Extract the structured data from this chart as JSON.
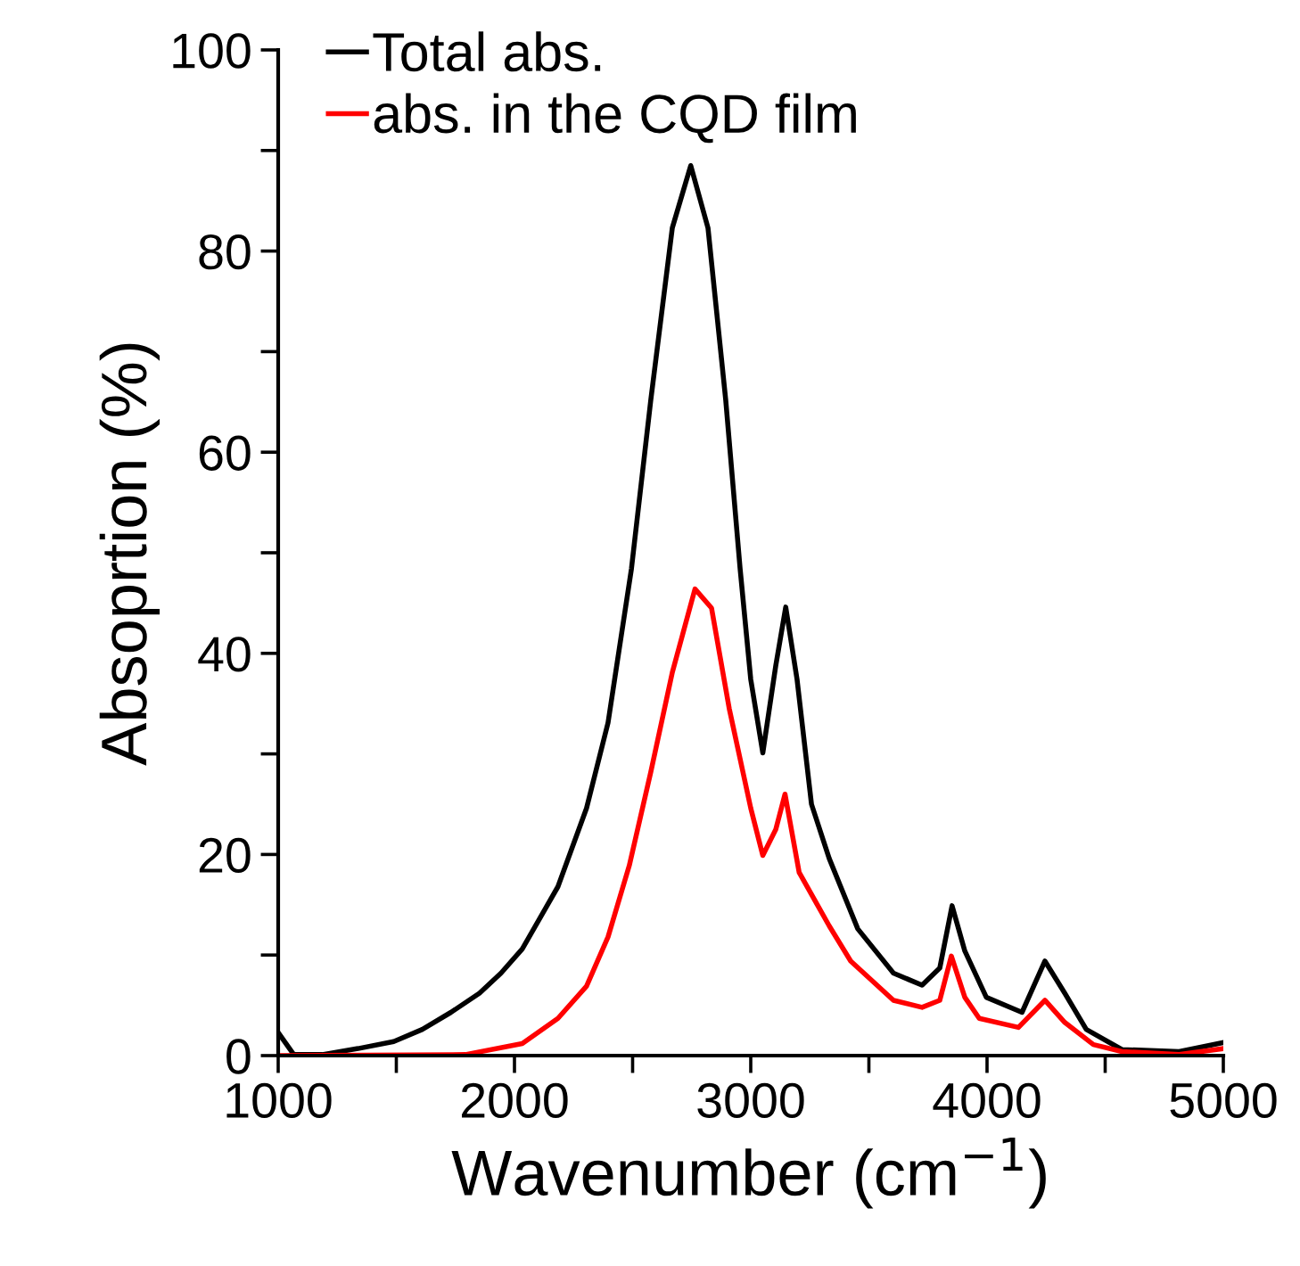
{
  "chart_data": {
    "type": "line",
    "xlabel": "Wavenumber (cm$^{−1}$)",
    "ylabel": "Absoprtion (%)",
    "xlim": [
      1000,
      5000
    ],
    "ylim": [
      0,
      100
    ],
    "xticks": [
      1000,
      {
        "value": 1500,
        "label": null
      },
      2000,
      {
        "value": 2500,
        "label": null
      },
      3000,
      {
        "value": 3500,
        "label": null
      },
      4000,
      {
        "value": 4500,
        "label": null
      },
      5000
    ],
    "yticks": [
      0,
      {
        "value": 10,
        "label": null
      },
      20,
      {
        "value": 30,
        "label": null
      },
      40,
      {
        "value": 50,
        "label": null
      },
      60,
      {
        "value": 70,
        "label": null
      },
      80,
      {
        "value": 90,
        "label": null
      },
      100
    ],
    "grid": false,
    "legend": "top left",
    "marker": "none",
    "line_style": "solid",
    "series": [
      {
        "name": "Total abs.",
        "color": "#000000",
        "x": [
          1000,
          1066,
          1187,
          1338,
          1489,
          1610,
          1731,
          1852,
          1943,
          2033,
          2184,
          2305,
          2396,
          2495,
          2577,
          2668,
          2746,
          2819,
          2894,
          2955,
          3000,
          3051,
          3106,
          3148,
          3196,
          3257,
          3332,
          3453,
          3604,
          3725,
          3800,
          3852,
          3906,
          3997,
          4148,
          4245,
          4329,
          4420,
          4571,
          4813,
          5000
        ],
        "values": [
          2.3,
          0.1,
          0.1,
          0.7,
          1.4,
          2.6,
          4.3,
          6.2,
          8.2,
          10.6,
          16.8,
          24.6,
          33.1,
          48.4,
          65.2,
          82.3,
          88.5,
          82.3,
          65.2,
          48.4,
          37.4,
          30.1,
          38.8,
          44.6,
          37.4,
          25,
          19.6,
          12.6,
          8.2,
          7.0,
          8.7,
          14.9,
          10.4,
          5.8,
          4.3,
          9.4,
          6.2,
          2.6,
          0.6,
          0.4,
          1.3
        ]
      },
      {
        "name": "abs. in the CQD film",
        "color": "#ff0000",
        "x": [
          1000,
          1792,
          2033,
          2184,
          2305,
          2396,
          2486,
          2577,
          2668,
          2764,
          2834,
          2909,
          3000,
          3051,
          3106,
          3145,
          3205,
          3332,
          3423,
          3604,
          3725,
          3800,
          3849,
          3906,
          3967,
          4133,
          4245,
          4329,
          4450,
          4571,
          4813,
          5000
        ],
        "values": [
          0,
          0.1,
          1.2,
          3.7,
          6.9,
          11.8,
          18.9,
          28.2,
          38.1,
          46.4,
          44.5,
          34.5,
          24.6,
          19.9,
          22.5,
          26.0,
          18.2,
          12.9,
          9.4,
          5.5,
          4.8,
          5.5,
          9.9,
          5.8,
          3.7,
          2.8,
          5.5,
          3.3,
          1.1,
          0.4,
          0.1,
          0.7
        ]
      }
    ]
  }
}
